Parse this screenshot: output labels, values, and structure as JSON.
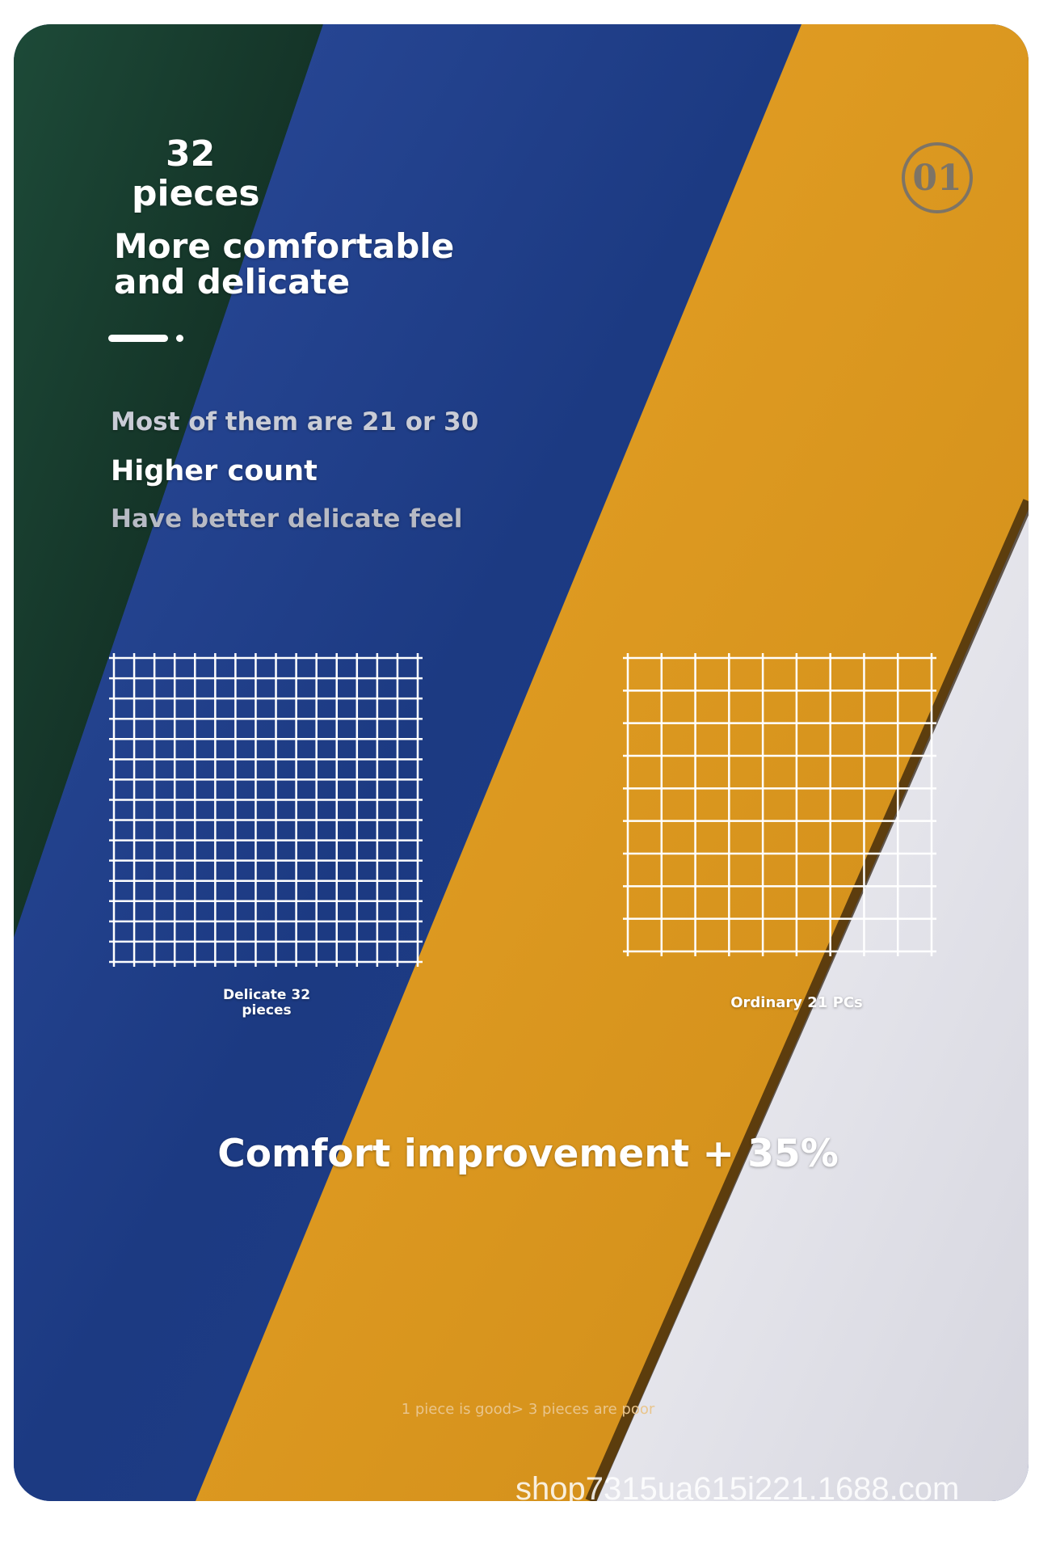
{
  "heading": {
    "count": "32",
    "unit": "pieces",
    "line1": "More comfortable",
    "line2": "and delicate"
  },
  "intro": {
    "line1": "Most of them are 21 or 30",
    "line2": "Higher count",
    "line3": "Have better delicate feel"
  },
  "badge": "01",
  "grids": {
    "left_label_1": "Delicate 32",
    "left_label_2": "pieces",
    "right_label": "Ordinary 21 PCs"
  },
  "headline": "Comfort improvement + 35%",
  "note": "1 piece is good> 3 pieces are poor",
  "watermark": "shop7315ua615i221.1688.com",
  "colors": {
    "green": "#17392c",
    "blue": "#1f3f8a",
    "yellow": "#dd9a1c",
    "white": "#e8e8ee"
  }
}
